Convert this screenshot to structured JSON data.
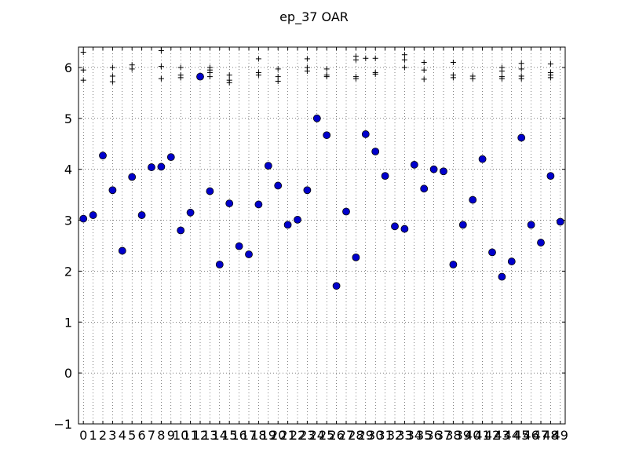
{
  "chart_data": {
    "type": "scatter",
    "title": "ep_37 OAR",
    "xlabel": "",
    "ylabel": "",
    "xlim": [
      -0.5,
      49.5
    ],
    "ylim": [
      -1,
      6.4
    ],
    "grid": true,
    "y_ticks": [
      -1,
      0,
      1,
      2,
      3,
      4,
      5,
      6
    ],
    "x_ticks": [
      0,
      1,
      2,
      3,
      4,
      5,
      6,
      7,
      8,
      9,
      10,
      11,
      12,
      13,
      14,
      15,
      16,
      17,
      18,
      19,
      20,
      21,
      22,
      23,
      24,
      25,
      26,
      27,
      28,
      29,
      30,
      31,
      32,
      33,
      34,
      35,
      36,
      37,
      38,
      39,
      40,
      41,
      42,
      43,
      44,
      45,
      46,
      47,
      48,
      49
    ],
    "marker_color": "#0000cc",
    "series": [
      {
        "marker": "circle",
        "x": [
          0,
          1,
          2,
          3,
          4,
          5,
          6,
          7,
          8,
          9,
          10,
          11,
          12,
          13,
          14,
          15,
          16,
          17,
          18,
          19,
          20,
          21,
          22,
          23,
          24,
          25,
          26,
          27,
          28,
          29,
          30,
          31,
          32,
          33,
          34,
          35,
          36,
          37,
          38,
          39,
          40,
          41,
          42,
          43,
          44,
          45,
          46,
          47,
          48,
          49
        ],
        "y": [
          3.03,
          3.1,
          4.27,
          3.59,
          2.4,
          3.85,
          3.1,
          4.04,
          4.05,
          4.24,
          2.8,
          3.15,
          5.82,
          3.57,
          2.13,
          3.33,
          2.49,
          2.33,
          3.31,
          4.07,
          3.68,
          2.91,
          3.01,
          3.59,
          5.0,
          4.67,
          1.71,
          3.17,
          2.27,
          4.69,
          4.35,
          3.87,
          2.88,
          2.83,
          4.09,
          3.62,
          4.0,
          3.96,
          2.13,
          2.91,
          3.4,
          4.2,
          2.37,
          1.89,
          2.19,
          4.62,
          2.91,
          2.56,
          3.87,
          2.97
        ]
      },
      {
        "marker": "plus",
        "points": [
          [
            0,
            6.3
          ],
          [
            0,
            5.95
          ],
          [
            0,
            5.75
          ],
          [
            3,
            6.0
          ],
          [
            3,
            5.83
          ],
          [
            3,
            5.72
          ],
          [
            5,
            6.05
          ],
          [
            5,
            5.97
          ],
          [
            8,
            6.33
          ],
          [
            8,
            6.02
          ],
          [
            8,
            5.78
          ],
          [
            10,
            6.0
          ],
          [
            10,
            5.85
          ],
          [
            10,
            5.8
          ],
          [
            12,
            5.83
          ],
          [
            13,
            6.0
          ],
          [
            13,
            5.95
          ],
          [
            13,
            5.9
          ],
          [
            13,
            5.82
          ],
          [
            15,
            5.85
          ],
          [
            15,
            5.75
          ],
          [
            15,
            5.7
          ],
          [
            18,
            6.17
          ],
          [
            18,
            5.9
          ],
          [
            18,
            5.85
          ],
          [
            20,
            5.97
          ],
          [
            20,
            5.82
          ],
          [
            20,
            5.73
          ],
          [
            23,
            6.17
          ],
          [
            23,
            6.0
          ],
          [
            23,
            5.93
          ],
          [
            25,
            5.97
          ],
          [
            25,
            5.85
          ],
          [
            25,
            5.82
          ],
          [
            28,
            6.22
          ],
          [
            28,
            6.15
          ],
          [
            28,
            5.82
          ],
          [
            28,
            5.78
          ],
          [
            29,
            6.18
          ],
          [
            30,
            6.18
          ],
          [
            30,
            5.9
          ],
          [
            30,
            5.87
          ],
          [
            33,
            6.25
          ],
          [
            33,
            6.15
          ],
          [
            33,
            6.0
          ],
          [
            35,
            6.1
          ],
          [
            35,
            5.95
          ],
          [
            35,
            5.77
          ],
          [
            38,
            6.1
          ],
          [
            38,
            5.85
          ],
          [
            38,
            5.8
          ],
          [
            40,
            5.83
          ],
          [
            40,
            5.78
          ],
          [
            43,
            6.0
          ],
          [
            43,
            5.93
          ],
          [
            43,
            5.82
          ],
          [
            43,
            5.78
          ],
          [
            45,
            6.08
          ],
          [
            45,
            5.97
          ],
          [
            45,
            5.83
          ],
          [
            45,
            5.78
          ],
          [
            48,
            6.07
          ],
          [
            48,
            5.9
          ],
          [
            48,
            5.85
          ],
          [
            48,
            5.8
          ]
        ]
      }
    ]
  }
}
